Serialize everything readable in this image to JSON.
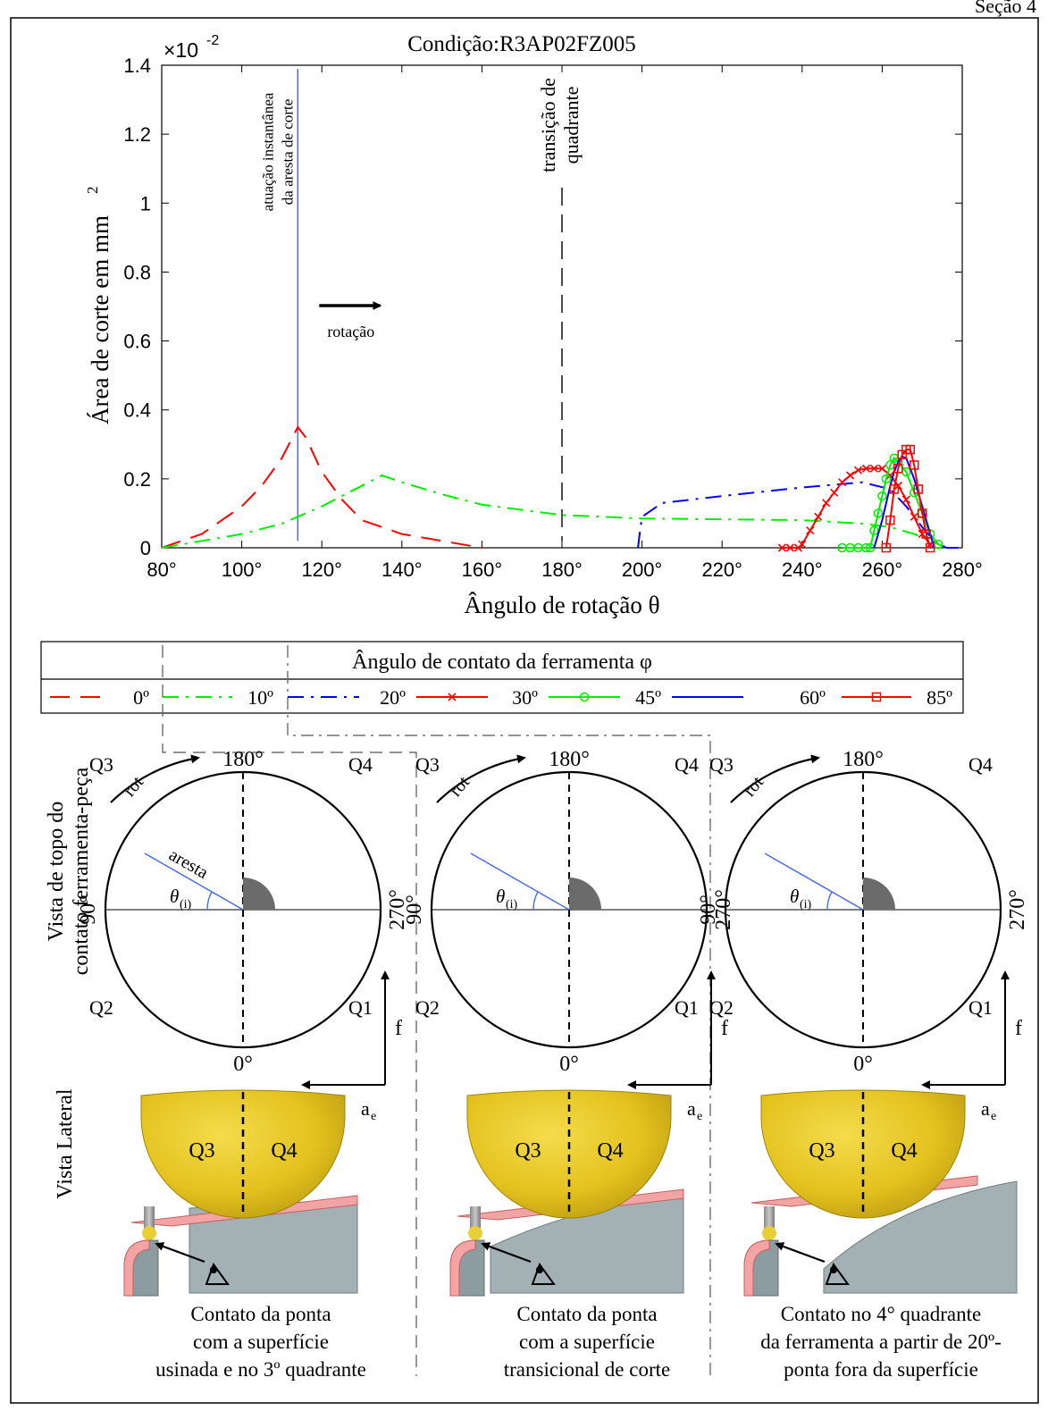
{
  "header_text": "Seção 4",
  "chart_data": {
    "type": "line",
    "title": "Condição:R3AP02FZ005",
    "xlabel": "Ângulo de rotação θ",
    "ylabel": "Área de corte em mm²",
    "ylabel_main": "Área de corte em mm",
    "ylabel_sup": "2",
    "y_multiplier": "×10⁻²",
    "y_multiplier_base": "×10",
    "y_multiplier_exp": "-2",
    "xlim": [
      80,
      280
    ],
    "ylim": [
      0,
      1.4
    ],
    "xticks": [
      80,
      100,
      120,
      140,
      160,
      180,
      200,
      220,
      240,
      260,
      280
    ],
    "xtick_labels": [
      "80°",
      "100°",
      "120°",
      "140°",
      "160°",
      "180°",
      "200°",
      "220°",
      "240°",
      "260°",
      "280°"
    ],
    "yticks": [
      0,
      0.2,
      0.4,
      0.6,
      0.8,
      1,
      1.2,
      1.4
    ],
    "ytick_labels": [
      "0",
      "0.2",
      "0.4",
      "0.6",
      "0.8",
      "1",
      "1.2",
      "1.4"
    ],
    "grid": false,
    "legend_title": "Ângulo de contato da ferramenta φ",
    "legend_position": "below chart",
    "series": [
      {
        "name": "0º",
        "color": "#ff0000",
        "style": "dashed",
        "marker": "none",
        "x": [
          80,
          90,
          100,
          105,
          110,
          114,
          116,
          120,
          125,
          130,
          140,
          150,
          160
        ],
        "y": [
          0,
          0.04,
          0.12,
          0.18,
          0.26,
          0.35,
          0.32,
          0.22,
          0.14,
          0.08,
          0.04,
          0.02,
          0
        ]
      },
      {
        "name": "10º",
        "color": "#00ee00",
        "style": "dashdot",
        "marker": "none",
        "x": [
          80,
          90,
          100,
          110,
          120,
          130,
          135,
          140,
          150,
          160,
          170,
          180,
          200,
          240,
          255,
          262,
          268,
          272,
          276
        ],
        "y": [
          0,
          0.02,
          0.04,
          0.07,
          0.12,
          0.18,
          0.21,
          0.19,
          0.155,
          0.125,
          0.11,
          0.095,
          0.085,
          0.08,
          0.07,
          0.06,
          0.04,
          0.02,
          0
        ]
      },
      {
        "name": "20º",
        "color": "#0000ff",
        "style": "dashdot",
        "marker": "none",
        "x": [
          199,
          199.5,
          200,
          205,
          220,
          240,
          255,
          262,
          266,
          270,
          273,
          276,
          280
        ],
        "y": [
          0,
          0.05,
          0.09,
          0.13,
          0.15,
          0.175,
          0.19,
          0.17,
          0.12,
          0.06,
          0.02,
          0,
          0
        ]
      },
      {
        "name": "30º",
        "color": "#ff0000",
        "style": "solid",
        "marker": "x",
        "x": [
          235,
          237,
          239,
          240,
          242,
          244,
          246,
          248,
          250,
          252,
          254,
          256,
          258,
          260,
          262,
          264,
          266,
          268,
          270,
          272
        ],
        "y": [
          0,
          0,
          0,
          0.01,
          0.05,
          0.09,
          0.13,
          0.16,
          0.19,
          0.21,
          0.225,
          0.23,
          0.23,
          0.23,
          0.21,
          0.18,
          0.14,
          0.09,
          0.04,
          0.01
        ]
      },
      {
        "name": "45º",
        "color": "#00ee00",
        "style": "solid",
        "marker": "o",
        "x": [
          250,
          252,
          254,
          256,
          257,
          258,
          259,
          260,
          261,
          262,
          263,
          264,
          266,
          268,
          270,
          272,
          274
        ],
        "y": [
          0,
          0,
          0,
          0,
          0,
          0.05,
          0.1,
          0.15,
          0.2,
          0.24,
          0.26,
          0.25,
          0.22,
          0.16,
          0.1,
          0.04,
          0.01
        ]
      },
      {
        "name": "60º",
        "color": "#0000ff",
        "style": "solid",
        "marker": "none",
        "x": [
          258,
          260,
          262,
          263,
          264,
          265,
          266,
          268,
          270,
          272,
          273
        ],
        "y": [
          0,
          0.08,
          0.18,
          0.22,
          0.25,
          0.265,
          0.26,
          0.2,
          0.12,
          0.04,
          0
        ]
      },
      {
        "name": "85º",
        "color": "#ff0000",
        "style": "solid",
        "marker": "square",
        "x": [
          261,
          262,
          263,
          264,
          265,
          266,
          267,
          268,
          269,
          270,
          271,
          272
        ],
        "y": [
          0,
          0.08,
          0.17,
          0.23,
          0.27,
          0.285,
          0.285,
          0.24,
          0.17,
          0.1,
          0.04,
          0
        ]
      }
    ],
    "annotations": {
      "edge_line_x": 114,
      "edge_line_label": [
        "atuação instantânea",
        "da aresta de corte"
      ],
      "quadrant_line_x": 180,
      "quadrant_line_label": [
        "transição de",
        "quadrante"
      ],
      "rotation_label": "rotação"
    }
  },
  "diagrams": {
    "row_label_top": [
      "Vista de topo do",
      "contato ferramenta-peça"
    ],
    "row_label_side": "Vista Lateral",
    "quadrant_labels": {
      "q1": "Q1",
      "q2": "Q2",
      "q3": "Q3",
      "q4": "Q4"
    },
    "angle_labels": {
      "a0": "0°",
      "a90": "90°",
      "a180": "180°",
      "a270": "270°"
    },
    "rot_label": "rot",
    "edge_label": "aresta",
    "theta_label": "θ",
    "theta_sub": "(i)",
    "feed_label": "f",
    "ae_label": "a",
    "ae_sub": "e",
    "side_labels": [
      "Q3",
      "Q4"
    ],
    "captions": [
      [
        "Contato da ponta",
        "com a superfície",
        "usinada e no 3º quadrante"
      ],
      [
        "Contato da ponta",
        "com a superfície",
        "transicional de corte"
      ],
      [
        "Contato no 4° quadrante",
        "da ferramenta a partir de 20º-",
        "ponta fora da superfície"
      ]
    ]
  }
}
